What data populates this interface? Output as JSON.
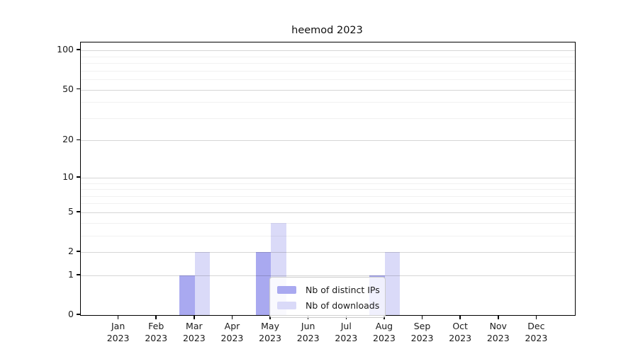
{
  "chart_data": {
    "type": "bar",
    "title": "heemod 2023",
    "xlabel": "",
    "ylabel": "",
    "x": {
      "months": [
        "Jan",
        "Feb",
        "Mar",
        "Apr",
        "May",
        "Jun",
        "Jul",
        "Aug",
        "Sep",
        "Oct",
        "Nov",
        "Dec"
      ],
      "year": "2023"
    },
    "series": [
      {
        "name": "Nb of distinct IPs",
        "color": "#a9a9f0",
        "values": [
          0,
          0,
          1,
          0,
          2,
          0,
          0,
          1,
          0,
          0,
          0,
          0
        ]
      },
      {
        "name": "Nb of downloads",
        "color": "#dadaf8",
        "values": [
          0,
          0,
          2,
          0,
          4,
          0,
          0,
          2,
          0,
          0,
          0,
          0
        ]
      }
    ],
    "yscale": "log1p",
    "ylim": [
      0,
      115
    ],
    "ytick_values": [
      0,
      1,
      2,
      5,
      10,
      20,
      50,
      100
    ],
    "ytick_labels": [
      "0",
      "1",
      "2",
      "5",
      "10",
      "20",
      "50",
      "100"
    ],
    "grid_major_values": [
      1,
      2,
      5,
      10,
      20,
      50,
      100
    ],
    "grid_minor_values": [
      3,
      4,
      6,
      7,
      8,
      9,
      30,
      40,
      60,
      70,
      80,
      90
    ],
    "grid": "horizontal",
    "legend": {
      "position": "lower-center",
      "entries": [
        "Nb of distinct IPs",
        "Nb of downloads"
      ]
    }
  }
}
